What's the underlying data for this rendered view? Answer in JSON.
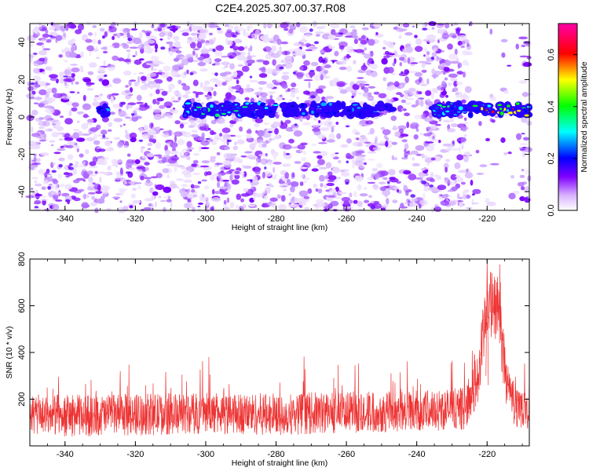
{
  "chart_data": [
    {
      "type": "heatmap",
      "title": "C2E4.2025.307.00.37.R08",
      "xlabel": "Height of straight line (km)",
      "ylabel": "Frequency (Hz)",
      "xlim": [
        -350,
        -208
      ],
      "ylim": [
        -50,
        50
      ],
      "x_ticks": [
        "-340",
        "-320",
        "-300",
        "-280",
        "-260",
        "-240",
        "-220"
      ],
      "y_ticks": [
        "40",
        "20",
        "0",
        "-20",
        "-40"
      ],
      "colorbar": {
        "label": "Normalized spectral amplitude",
        "range": [
          0,
          0.72
        ],
        "ticks": [
          "0.0",
          "0.2",
          "0.4",
          "0.6"
        ],
        "colormap": [
          "#ffffff",
          "#d9b3ff",
          "#8000ff",
          "#0000ff",
          "#00ffff",
          "#00ff00",
          "#ffff00",
          "#ff0000",
          "#ff00aa"
        ]
      },
      "ridge": {
        "frequency": 4,
        "segments": [
          {
            "x_start": -331,
            "x_end": -328,
            "amplitude": 0.12
          },
          {
            "x_start": -306,
            "x_end": -280,
            "amplitude": 0.2
          },
          {
            "x_start": -278,
            "x_end": -272,
            "amplitude": 0.1
          },
          {
            "x_start": -270,
            "x_end": -247,
            "amplitude": 0.15
          },
          {
            "x_start": -236,
            "x_end": -225,
            "amplitude": 0.2
          },
          {
            "x_start": -225,
            "x_end": -208,
            "amplitude": 0.55
          }
        ]
      },
      "gap_region": [
        -225,
        -210
      ]
    },
    {
      "type": "line",
      "title": "",
      "xlabel": "Height of straight line (km)",
      "ylabel": "SNR (10 * v/v)",
      "xlim": [
        -350,
        -208
      ],
      "ylim": [
        0,
        800
      ],
      "x_ticks": [
        "-340",
        "-320",
        "-300",
        "-280",
        "-260",
        "-240",
        "-220"
      ],
      "y_ticks": [
        "800",
        "600",
        "400",
        "200"
      ],
      "color": "#ee3333",
      "series_profile": {
        "baseline": [
          [
            -350,
            130
          ],
          [
            -330,
            130
          ],
          [
            -300,
            140
          ],
          [
            -280,
            135
          ],
          [
            -260,
            145
          ],
          [
            -240,
            150
          ],
          [
            -226,
            160
          ],
          [
            -222,
            330
          ],
          [
            -220,
            620
          ],
          [
            -217,
            580
          ],
          [
            -214,
            250
          ],
          [
            -212,
            170
          ],
          [
            -208,
            160
          ]
        ],
        "noise_amplitude": 90,
        "peak": {
          "x": -220,
          "y": 800
        }
      }
    }
  ]
}
